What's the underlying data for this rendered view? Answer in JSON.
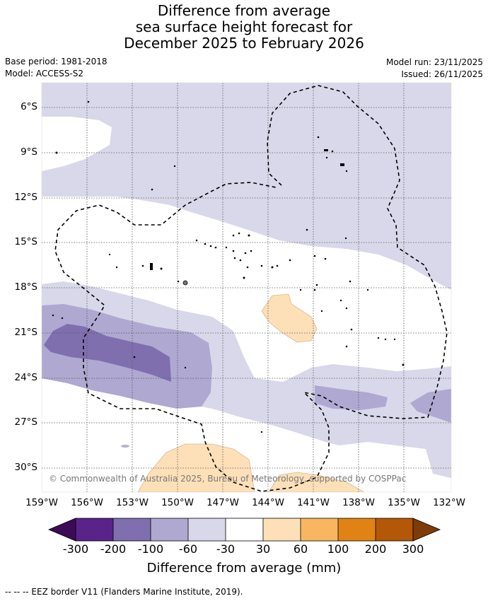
{
  "title": {
    "line1": "Difference from average",
    "line2": "sea surface height forecast for",
    "line3": "December 2025 to February 2026"
  },
  "meta": {
    "base_period": "Base period: 1981-2018",
    "model": "Model: ACCESS-S2",
    "model_run": "Model run: 23/11/2025",
    "issued": "Issued: 26/11/2025"
  },
  "axes": {
    "lat_labels": [
      "6°S",
      "9°S",
      "12°S",
      "15°S",
      "18°S",
      "21°S",
      "24°S",
      "27°S",
      "30°S"
    ],
    "lon_labels": [
      "159°W",
      "156°W",
      "153°W",
      "150°W",
      "147°W",
      "144°W",
      "141°W",
      "138°W",
      "135°W",
      "132°W"
    ]
  },
  "colorbar": {
    "labels": [
      "-300",
      "-200",
      "-100",
      "-60",
      "-30",
      "30",
      "60",
      "100",
      "200",
      "300"
    ],
    "colors": [
      "#3c0a57",
      "#5a238a",
      "#7f6fae",
      "#afa8d1",
      "#d8d8ea",
      "#ffffff",
      "#fde0b8",
      "#f9b660",
      "#e08314",
      "#b35806",
      "#7f3b08"
    ],
    "title": "Difference from average (mm)"
  },
  "copyright": "© Commonwealth of Australia 2025, Bureau of Meteorology, supported by COSPPac",
  "footer": "--  --  -- EEZ border V11 (Flanders Marine Institute, 2019)."
}
